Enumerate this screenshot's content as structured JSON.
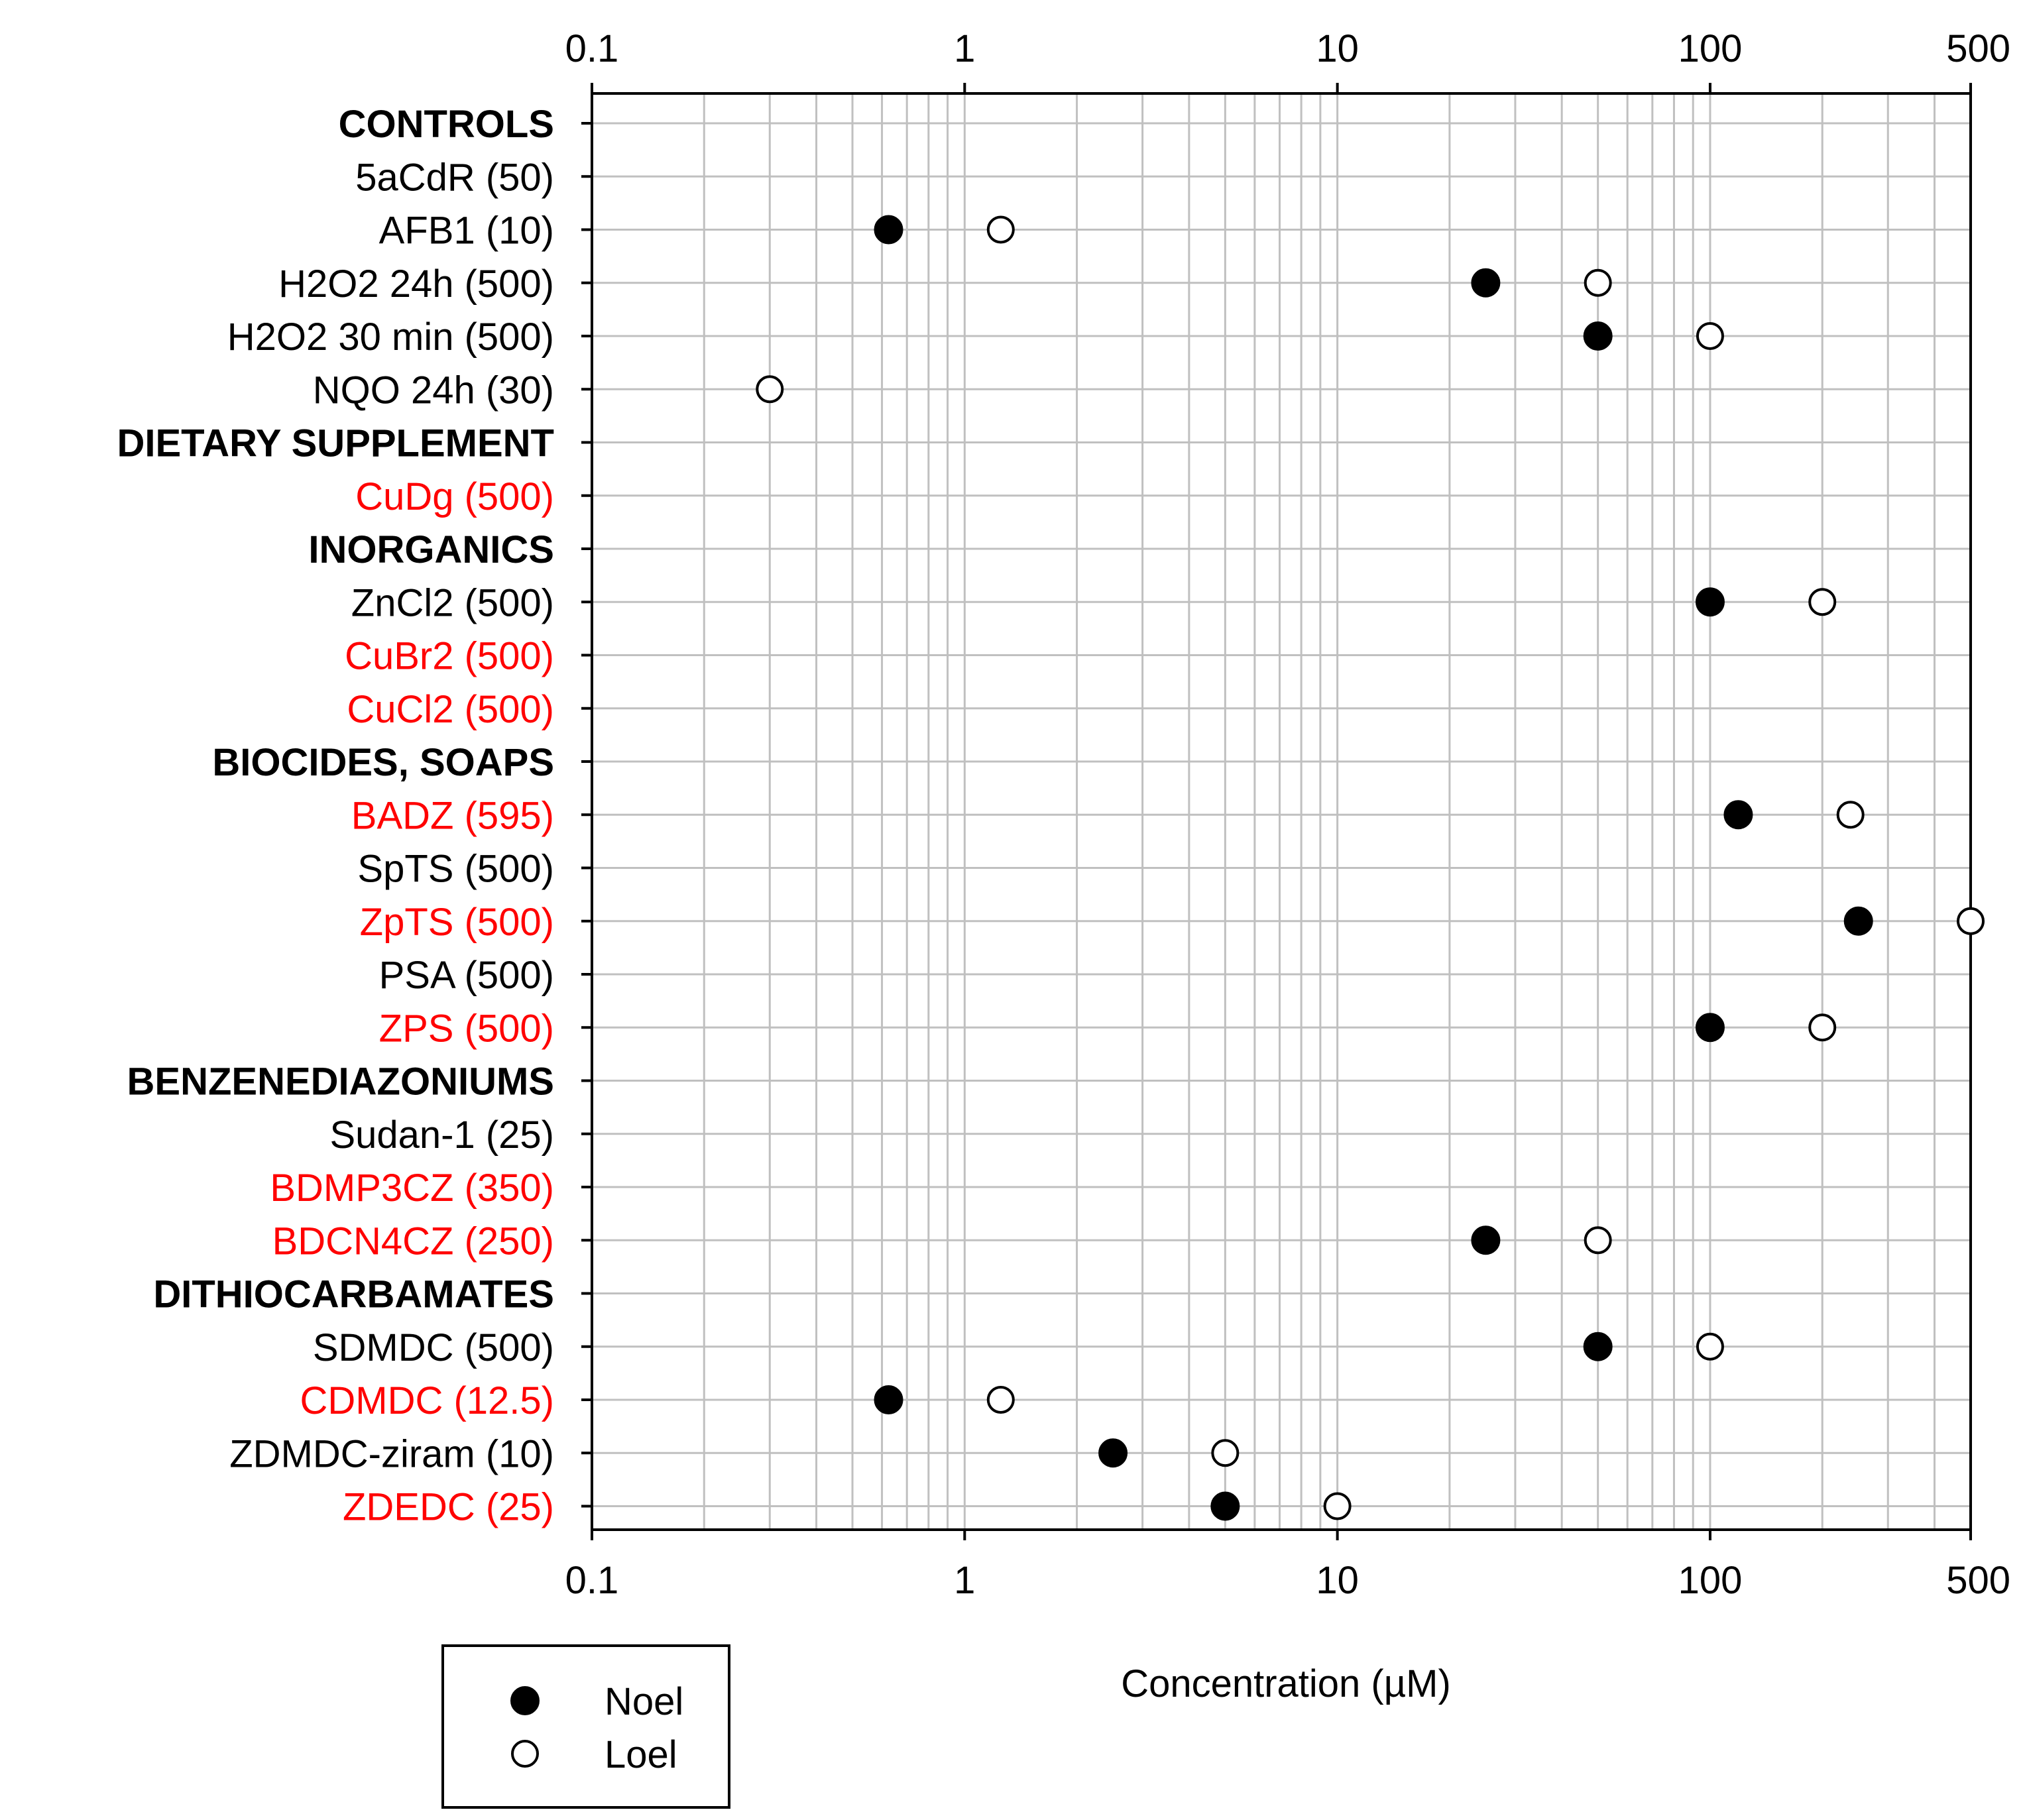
{
  "chart_data": {
    "type": "scatter",
    "title": "",
    "xlabel": "Concentration (µM)",
    "ylabel": "",
    "xscale": "log",
    "xlim": [
      0.1,
      500
    ],
    "xticks": [
      {
        "value": 0.1,
        "label": "0.1"
      },
      {
        "value": 1,
        "label": "1"
      },
      {
        "value": 10,
        "label": "10"
      },
      {
        "value": 100,
        "label": "100"
      },
      {
        "value": 500,
        "label": "500"
      }
    ],
    "grid": true,
    "legend": {
      "position": "bottom-left",
      "entries": [
        {
          "name": "Noel",
          "marker": "filled-circle"
        },
        {
          "name": "Loel",
          "marker": "open-circle"
        }
      ]
    },
    "colors": {
      "header": "#000000",
      "normal": "#000000",
      "highlight": "#ff0000"
    },
    "rows": [
      {
        "label": "CONTROLS",
        "kind": "header"
      },
      {
        "label": "5aCdR (50)",
        "kind": "normal",
        "noel": null,
        "loel": null
      },
      {
        "label": "AFB1 (10)",
        "kind": "normal",
        "noel": 0.625,
        "loel": 1.25
      },
      {
        "label": "H2O2 24h (500)",
        "kind": "normal",
        "noel": 25,
        "loel": 50
      },
      {
        "label": "H2O2 30 min (500)",
        "kind": "normal",
        "noel": 50,
        "loel": 100
      },
      {
        "label": "NQO 24h (30)",
        "kind": "normal",
        "noel": null,
        "loel": 0.3
      },
      {
        "label": "DIETARY SUPPLEMENT",
        "kind": "header"
      },
      {
        "label": "CuDg (500)",
        "kind": "highlight",
        "noel": null,
        "loel": null
      },
      {
        "label": "INORGANICS",
        "kind": "header"
      },
      {
        "label": "ZnCl2 (500)",
        "kind": "normal",
        "noel": 100,
        "loel": 200
      },
      {
        "label": "CuBr2 (500)",
        "kind": "highlight",
        "noel": null,
        "loel": null
      },
      {
        "label": "CuCl2 (500)",
        "kind": "highlight",
        "noel": null,
        "loel": null
      },
      {
        "label": "BIOCIDES, SOAPS",
        "kind": "header"
      },
      {
        "label": "BADZ (595)",
        "kind": "highlight",
        "noel": 119,
        "loel": 238
      },
      {
        "label": "SpTS (500)",
        "kind": "normal",
        "noel": null,
        "loel": null
      },
      {
        "label": "ZpTS (500)",
        "kind": "highlight",
        "noel": 250,
        "loel": 500
      },
      {
        "label": "PSA (500)",
        "kind": "normal",
        "noel": null,
        "loel": null
      },
      {
        "label": "ZPS (500)",
        "kind": "highlight",
        "noel": 100,
        "loel": 200
      },
      {
        "label": "BENZENEDIAZONIUMS",
        "kind": "header"
      },
      {
        "label": "Sudan-1 (25)",
        "kind": "normal",
        "noel": null,
        "loel": null
      },
      {
        "label": "BDMP3CZ (350)",
        "kind": "highlight",
        "noel": null,
        "loel": null
      },
      {
        "label": "BDCN4CZ (250)",
        "kind": "highlight",
        "noel": 25,
        "loel": 50
      },
      {
        "label": "DITHIOCARBAMATES",
        "kind": "header"
      },
      {
        "label": "SDMDC (500)",
        "kind": "normal",
        "noel": 50,
        "loel": 100
      },
      {
        "label": "CDMDC (12.5)",
        "kind": "highlight",
        "noel": 0.625,
        "loel": 1.25
      },
      {
        "label": "ZDMDC-ziram (10)",
        "kind": "normal",
        "noel": 2.5,
        "loel": 5
      },
      {
        "label": "ZDEDC (25)",
        "kind": "highlight",
        "noel": 5,
        "loel": 10
      }
    ]
  }
}
